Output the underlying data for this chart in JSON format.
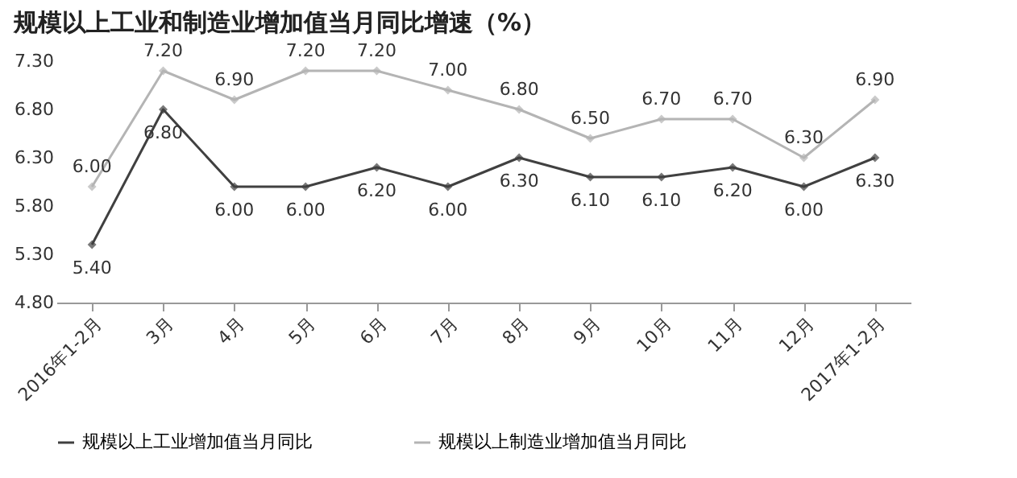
{
  "chart_data": {
    "type": "line",
    "title": "规模以上工业和制造业增加值当月同比增速（%）",
    "categories": [
      "2016年1-2月",
      "3月",
      "4月",
      "5月",
      "6月",
      "7月",
      "8月",
      "9月",
      "10月",
      "11月",
      "12月",
      "2017年1-2月"
    ],
    "series": [
      {
        "name": "规模以上工业增加值当月同比",
        "color": "#404040",
        "values": [
          5.4,
          6.8,
          6.0,
          6.0,
          6.2,
          6.0,
          6.3,
          6.1,
          6.1,
          6.2,
          6.0,
          6.3
        ],
        "value_labels": [
          "5.40",
          "6.80",
          "6.00",
          "6.00",
          "6.20",
          "6.00",
          "6.30",
          "6.10",
          "6.10",
          "6.20",
          "6.00",
          "6.30"
        ]
      },
      {
        "name": "规模以上制造业增加值当月同比",
        "color": "#b4b4b4",
        "values": [
          6.0,
          7.2,
          6.9,
          7.2,
          7.2,
          7.0,
          6.8,
          6.5,
          6.7,
          6.7,
          6.3,
          6.9
        ],
        "value_labels": [
          "6.00",
          "7.20",
          "6.90",
          "7.20",
          "7.20",
          "7.00",
          "6.80",
          "6.50",
          "6.70",
          "6.70",
          "6.30",
          "6.90"
        ]
      }
    ],
    "ylim": [
      4.8,
      7.3
    ],
    "yticks": [
      {
        "value": 4.8,
        "label": "4.80"
      },
      {
        "value": 5.3,
        "label": "5.30"
      },
      {
        "value": 5.8,
        "label": "5.80"
      },
      {
        "value": 6.3,
        "label": "6.30"
      },
      {
        "value": 6.8,
        "label": "6.80"
      },
      {
        "value": 7.3,
        "label": "7.30"
      }
    ],
    "grid": false,
    "legend": "bottom",
    "marker": "diamond",
    "line_style": "solid"
  }
}
